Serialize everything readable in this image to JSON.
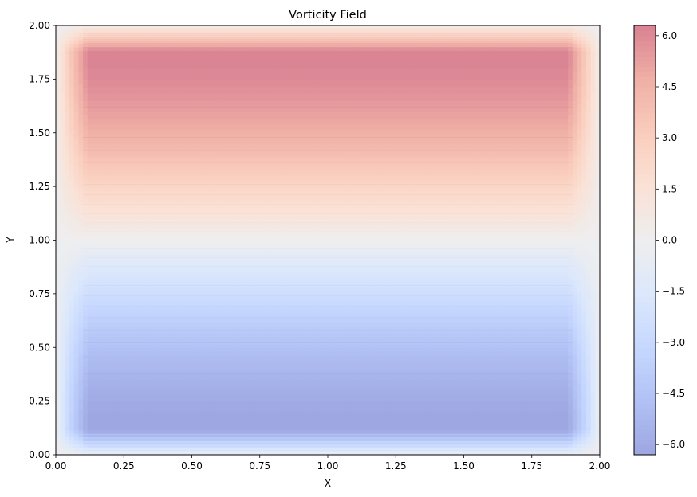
{
  "chart_data": {
    "type": "heatmap",
    "subtype": "filled-contour",
    "title": "Vorticity Field",
    "xlabel": "X",
    "ylabel": "Y",
    "xlim": [
      0,
      2
    ],
    "ylim": [
      0,
      2
    ],
    "x_ticks": [
      "0.00",
      "0.25",
      "0.50",
      "0.75",
      "1.00",
      "1.25",
      "1.50",
      "1.75",
      "2.00"
    ],
    "y_ticks": [
      "0.00",
      "0.25",
      "0.50",
      "0.75",
      "1.00",
      "1.25",
      "1.50",
      "1.75",
      "2.00"
    ],
    "colormap": "coolwarm",
    "alpha": 0.5,
    "colorbar": {
      "range": [
        -6.3,
        6.3
      ],
      "ticks": [
        "6.0",
        "4.5",
        "3.0",
        "1.5",
        "0.0",
        "−1.5",
        "−3.0",
        "−4.5",
        "−6.0"
      ],
      "tick_values": [
        6.0,
        4.5,
        3.0,
        1.5,
        0.0,
        -1.5,
        -3.0,
        -4.5,
        -6.0
      ],
      "placement": "right"
    },
    "field": {
      "description_of_values": "vorticity ~ 6.3 near top wall (y≈1.88), ~ -6.3 near bottom wall (y≈0.12), 0 at y = 1.0, decaying to ~0 at all boundaries",
      "max": 6.3,
      "min": -6.3,
      "peak_y_top": 1.88,
      "peak_y_bottom": 0.12,
      "peak_x_range": [
        0.12,
        1.88
      ]
    },
    "grid": false
  },
  "colors": {
    "cool_end": "#3b4cc0",
    "mid": "#dddddd",
    "warm_end": "#b40426"
  }
}
